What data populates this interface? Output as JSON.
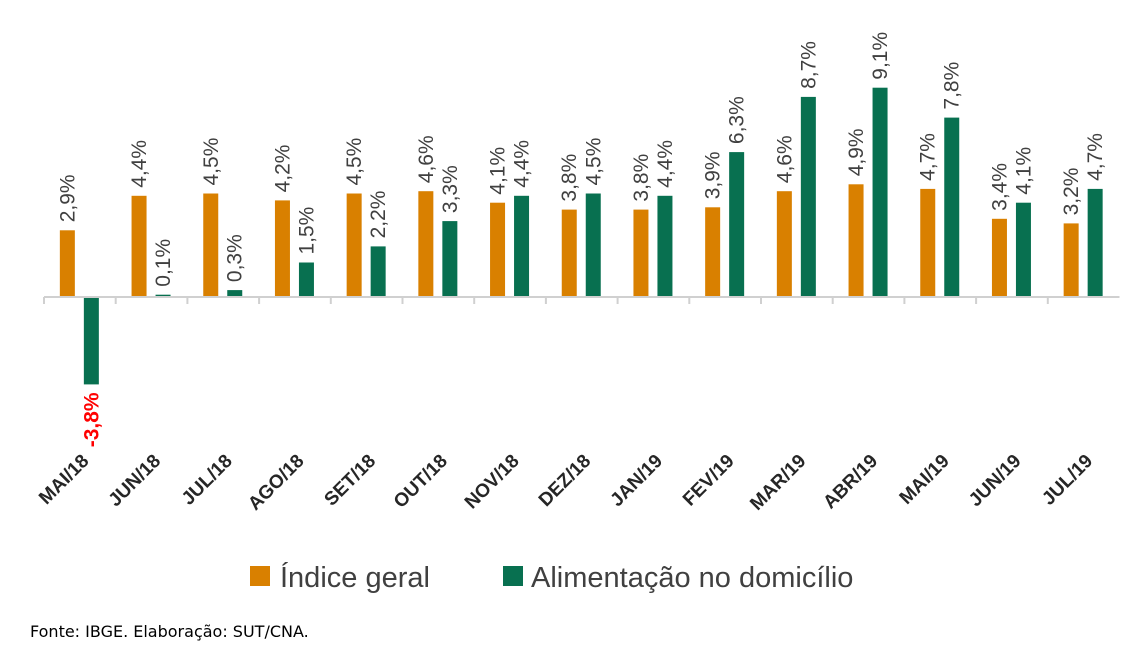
{
  "chart_data": {
    "type": "bar",
    "title": "",
    "xlabel": "",
    "ylabel": "",
    "categories": [
      "MAI/18",
      "JUN/18",
      "JUL/18",
      "AGO/18",
      "SET/18",
      "OUT/18",
      "NOV/18",
      "DEZ/18",
      "JAN/19",
      "FEV/19",
      "MAR/19",
      "ABR/19",
      "MAI/19",
      "JUN/19",
      "JUL/19"
    ],
    "series": [
      {
        "name": "Índice geral",
        "color": "#D98000",
        "values": [
          2.9,
          4.4,
          4.5,
          4.2,
          4.5,
          4.6,
          4.1,
          3.8,
          3.8,
          3.9,
          4.6,
          4.9,
          4.7,
          3.4,
          3.2
        ],
        "labels": [
          "2,9%",
          "4,4%",
          "4,5%",
          "4,2%",
          "4,5%",
          "4,6%",
          "4,1%",
          "3,8%",
          "3,8%",
          "3,9%",
          "4,6%",
          "4,9%",
          "4,7%",
          "3,4%",
          "3,2%"
        ]
      },
      {
        "name": "Alimentação no domicílio",
        "color": "#087050",
        "values": [
          -3.8,
          0.1,
          0.3,
          1.5,
          2.2,
          3.3,
          4.4,
          4.5,
          4.4,
          6.3,
          8.7,
          9.1,
          7.8,
          4.1,
          4.7
        ],
        "labels": [
          "-3,8%",
          "0,1%",
          "0,3%",
          "1,5%",
          "2,2%",
          "3,3%",
          "4,4%",
          "4,5%",
          "4,4%",
          "6,3%",
          "8,7%",
          "9,1%",
          "7,8%",
          "4,1%",
          "4,7%"
        ]
      }
    ],
    "negative_label_color": "#FF0000",
    "ylim": [
      -3.8,
      9.1
    ],
    "grid": false,
    "legend_position": "bottom"
  },
  "source": "Fonte: IBGE. Elaboração: SUT/CNA."
}
